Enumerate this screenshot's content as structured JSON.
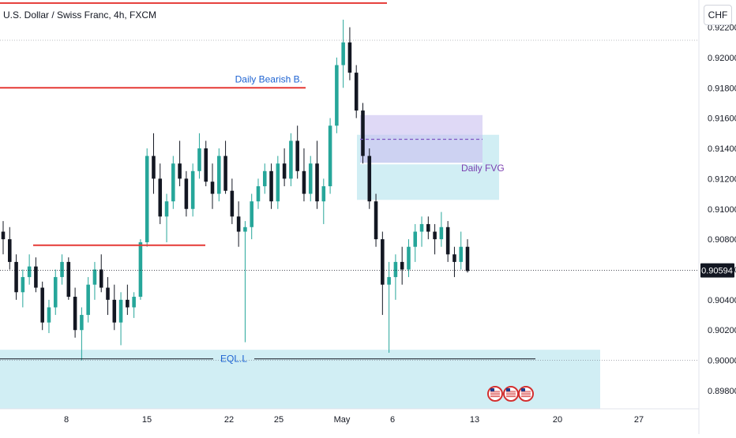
{
  "header": {
    "title": "U.S. Dollar / Swiss Franc, 4h, FXCM",
    "currency": "CHF"
  },
  "chart_data": {
    "type": "candlestick",
    "title": "U.S. Dollar / Swiss Franc, 4h, FXCM",
    "price_axis": {
      "ylim": [
        0.8968,
        0.9238
      ],
      "ticks": [
        "0.92200",
        "0.92000",
        "0.91800",
        "0.91600",
        "0.91400",
        "0.91200",
        "0.91000",
        "0.90800",
        "0.90600",
        "0.90400",
        "0.90200",
        "0.90000",
        "0.89800"
      ]
    },
    "time_axis": {
      "ticks": [
        "8",
        "15",
        "22",
        "25",
        "May",
        "6",
        "13",
        "20",
        "27"
      ]
    },
    "current_price": "0.90594",
    "colors": {
      "up": "#26a69a",
      "down": "#131722",
      "level": "#e53935",
      "zone": "#b2e3ec",
      "fvg": "#c9bff0",
      "price_line": "#131722"
    },
    "annotations": {
      "daily_bearish_label": "Daily Bearish B.",
      "daily_bearish_price": 0.918,
      "top_level_price": 0.9236,
      "mid_level_price": 0.9076,
      "daily_fvg_label": "Daily FVG",
      "fvg_zone": [
        0.913,
        0.9162
      ],
      "fvg_mid": 0.9146,
      "daily_zone": [
        0.9106,
        0.9149
      ],
      "eql_label": "EQL.L",
      "eql_price": 0.9001,
      "eql_zone": [
        0.8968,
        0.9007
      ]
    },
    "series": [
      {
        "values": [
          [
            0.9085,
            0.9092,
            0.907,
            0.908
          ],
          [
            0.908,
            0.9088,
            0.906,
            0.9065
          ],
          [
            0.9065,
            0.907,
            0.904,
            0.9045
          ],
          [
            0.9045,
            0.906,
            0.9035,
            0.9055
          ],
          [
            0.9055,
            0.907,
            0.905,
            0.9062
          ],
          [
            0.9062,
            0.9068,
            0.9045,
            0.9048
          ],
          [
            0.9048,
            0.9052,
            0.902,
            0.9025
          ],
          [
            0.9025,
            0.904,
            0.9018,
            0.9035
          ],
          [
            0.9035,
            0.906,
            0.903,
            0.9055
          ],
          [
            0.9055,
            0.907,
            0.905,
            0.9065
          ],
          [
            0.9065,
            0.9068,
            0.904,
            0.9042
          ],
          [
            0.9042,
            0.9048,
            0.9015,
            0.902
          ],
          [
            0.902,
            0.9035,
            0.9,
            0.903
          ],
          [
            0.903,
            0.9055,
            0.9025,
            0.905
          ],
          [
            0.905,
            0.9065,
            0.904,
            0.906
          ],
          [
            0.906,
            0.907,
            0.9045,
            0.9048
          ],
          [
            0.9048,
            0.9055,
            0.903,
            0.904
          ],
          [
            0.904,
            0.905,
            0.902,
            0.9025
          ],
          [
            0.9025,
            0.9045,
            0.901,
            0.904
          ],
          [
            0.904,
            0.905,
            0.903,
            0.9035
          ],
          [
            0.9035,
            0.9045,
            0.9028,
            0.9042
          ],
          [
            0.9042,
            0.908,
            0.904,
            0.9078
          ],
          [
            0.9078,
            0.914,
            0.9075,
            0.9135
          ],
          [
            0.9135,
            0.915,
            0.911,
            0.912
          ],
          [
            0.912,
            0.913,
            0.909,
            0.9095
          ],
          [
            0.9095,
            0.911,
            0.9078,
            0.9105
          ],
          [
            0.9105,
            0.9135,
            0.91,
            0.913
          ],
          [
            0.913,
            0.9145,
            0.9115,
            0.912
          ],
          [
            0.912,
            0.9125,
            0.9095,
            0.91
          ],
          [
            0.91,
            0.913,
            0.9095,
            0.9125
          ],
          [
            0.9125,
            0.915,
            0.912,
            0.914
          ],
          [
            0.914,
            0.9145,
            0.9115,
            0.9118
          ],
          [
            0.9118,
            0.913,
            0.91,
            0.911
          ],
          [
            0.911,
            0.914,
            0.9105,
            0.9135
          ],
          [
            0.9135,
            0.9145,
            0.911,
            0.9112
          ],
          [
            0.9112,
            0.912,
            0.909,
            0.9095
          ],
          [
            0.9095,
            0.9105,
            0.9075,
            0.9085
          ],
          [
            0.9085,
            0.9092,
            0.9012,
            0.9088
          ],
          [
            0.9088,
            0.911,
            0.908,
            0.9105
          ],
          [
            0.9105,
            0.912,
            0.91,
            0.9115
          ],
          [
            0.9115,
            0.913,
            0.911,
            0.9125
          ],
          [
            0.9125,
            0.913,
            0.91,
            0.9105
          ],
          [
            0.9105,
            0.9135,
            0.91,
            0.913
          ],
          [
            0.913,
            0.914,
            0.9115,
            0.912
          ],
          [
            0.912,
            0.915,
            0.9115,
            0.9145
          ],
          [
            0.9145,
            0.9155,
            0.912,
            0.9125
          ],
          [
            0.9125,
            0.914,
            0.9105,
            0.911
          ],
          [
            0.911,
            0.9135,
            0.9105,
            0.913
          ],
          [
            0.913,
            0.9145,
            0.91,
            0.9105
          ],
          [
            0.9105,
            0.912,
            0.909,
            0.9115
          ],
          [
            0.9115,
            0.916,
            0.911,
            0.9155
          ],
          [
            0.9155,
            0.92,
            0.915,
            0.9195
          ],
          [
            0.9195,
            0.9225,
            0.918,
            0.921
          ],
          [
            0.921,
            0.922,
            0.9185,
            0.919
          ],
          [
            0.919,
            0.9195,
            0.916,
            0.9165
          ],
          [
            0.9165,
            0.917,
            0.913,
            0.9135
          ],
          [
            0.9135,
            0.914,
            0.91,
            0.9105
          ],
          [
            0.9105,
            0.911,
            0.9075,
            0.908
          ],
          [
            0.908,
            0.9085,
            0.903,
            0.905
          ],
          [
            0.905,
            0.9065,
            0.9005,
            0.9055
          ],
          [
            0.9055,
            0.907,
            0.904,
            0.9065
          ],
          [
            0.9065,
            0.9075,
            0.905,
            0.906
          ],
          [
            0.906,
            0.908,
            0.9055,
            0.9075
          ],
          [
            0.9075,
            0.909,
            0.9065,
            0.9085
          ],
          [
            0.9085,
            0.9095,
            0.9075,
            0.909
          ],
          [
            0.909,
            0.9095,
            0.908,
            0.9085
          ],
          [
            0.9085,
            0.909,
            0.907,
            0.908
          ],
          [
            0.908,
            0.9098,
            0.9075,
            0.9088
          ],
          [
            0.9088,
            0.9092,
            0.9065,
            0.907
          ],
          [
            0.907,
            0.9075,
            0.9055,
            0.9065
          ],
          [
            0.9065,
            0.9085,
            0.906,
            0.9075
          ],
          [
            0.9075,
            0.908,
            0.9058,
            0.9059
          ]
        ]
      }
    ],
    "event_icons": [
      "us-flag-icon",
      "us-flag-icon",
      "us-flag-icon"
    ]
  }
}
